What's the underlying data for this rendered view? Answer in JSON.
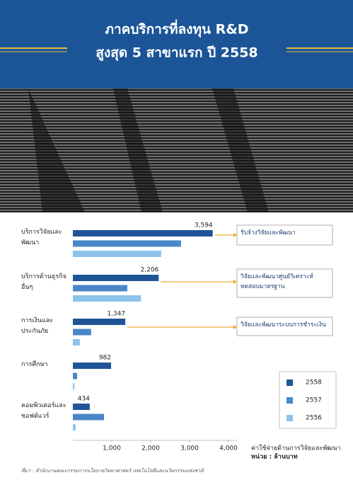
{
  "chart_data": {
    "type": "hbar",
    "title": [
      "ภาคบริการที่ลงทุน R&D",
      "สูงสุด 5 สาขาแรก ปี 2558"
    ],
    "categories": [
      "บริการวิจัยและพัฒนา",
      "บริการด้านธุรกิจอื่นๆ",
      "การเงินและประกันภัย",
      "การศึกษา",
      "คอมพิวเตอร์และซอฟต์แวร์"
    ],
    "series": [
      {
        "name": "2558",
        "color": "#1f5597",
        "values": [
          3594,
          2206,
          1347,
          982,
          434
        ],
        "value_labels": [
          "3,594",
          "2,206",
          "1,347",
          "982",
          "434"
        ]
      },
      {
        "name": "2557",
        "color": "#4a87c8",
        "values": [
          2780,
          1400,
          470,
          110,
          800
        ]
      },
      {
        "name": "2556",
        "color": "#8ec3ea",
        "values": [
          2270,
          1750,
          180,
          40,
          70
        ]
      }
    ],
    "xlim": [
      0,
      4000
    ],
    "xticks": [
      {
        "value": 1000,
        "label": "1,000"
      },
      {
        "value": 2000,
        "label": "2,000"
      },
      {
        "value": 3000,
        "label": "3,000"
      },
      {
        "value": 4000,
        "label": "4,000"
      }
    ],
    "annotations": [
      "รับจ้างวิจัยและพัฒนา",
      "วิจัยและพัฒนาศูนย์วิเคราะห์ทดสอบมาตรฐาน",
      "วิจัยและพัฒนาระบบการชำระเงิน"
    ],
    "x_label": [
      "ค่าใช้จ่ายด้านการวิจัยและพัฒนา",
      "หน่วย : ล้านบาท"
    ],
    "source": "ที่มา : สำนักงานคณะกรรมการนโยบายวิทยาศาสตร์ เทคโนโลยีและนวัตกรรมแห่งชาติ"
  }
}
